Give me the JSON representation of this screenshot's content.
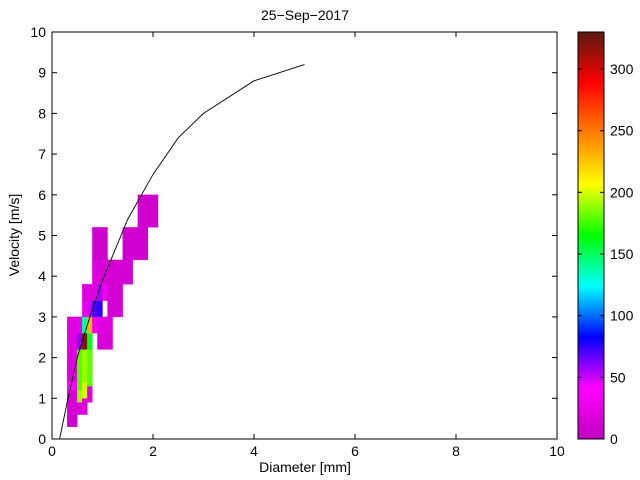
{
  "chart_data": {
    "type": "heatmap",
    "title": "25−Sep−2017",
    "xlabel": "Diameter [mm]",
    "ylabel": "Velocity [m/s]",
    "xlim": [
      0,
      10
    ],
    "ylim": [
      0,
      10
    ],
    "xticks": [
      "0",
      "2",
      "4",
      "6",
      "8",
      "10"
    ],
    "yticks": [
      "0",
      "1",
      "2",
      "3",
      "4",
      "5",
      "6",
      "7",
      "8",
      "9",
      "10"
    ],
    "colorbar": {
      "range": [
        0,
        330
      ],
      "ticks": [
        "0",
        "50",
        "100",
        "150",
        "200",
        "250",
        "300"
      ],
      "colormap": [
        "#c000c0",
        "#ff00ff",
        "#0000ff",
        "#00ffff",
        "#00ff00",
        "#ffff00",
        "#ff8000",
        "#ff0000",
        "#5a1a10"
      ]
    },
    "cells": [
      {
        "x0": 0.3,
        "x1": 0.5,
        "y0": 0.3,
        "y1": 0.6,
        "value": 10
      },
      {
        "x0": 0.3,
        "x1": 0.6,
        "y0": 0.6,
        "y1": 1.2,
        "value": 15
      },
      {
        "x0": 0.3,
        "x1": 0.5,
        "y0": 1.2,
        "y1": 1.4,
        "value": 40
      },
      {
        "x0": 0.3,
        "x1": 0.5,
        "y0": 1.4,
        "y1": 3.0,
        "value": 20
      },
      {
        "x0": 0.5,
        "x1": 0.6,
        "y0": 0.9,
        "y1": 1.2,
        "value": 190
      },
      {
        "x0": 0.5,
        "x1": 0.6,
        "y0": 1.2,
        "y1": 2.2,
        "value": 180
      },
      {
        "x0": 0.5,
        "x1": 0.6,
        "y0": 2.2,
        "y1": 2.6,
        "value": 60
      },
      {
        "x0": 0.5,
        "x1": 0.6,
        "y0": 2.6,
        "y1": 3.0,
        "value": 25
      },
      {
        "x0": 0.6,
        "x1": 0.7,
        "y0": 0.6,
        "y1": 1.0,
        "value": 20
      },
      {
        "x0": 0.6,
        "x1": 0.7,
        "y0": 1.0,
        "y1": 1.4,
        "value": 200
      },
      {
        "x0": 0.6,
        "x1": 0.7,
        "y0": 1.4,
        "y1": 2.2,
        "value": 190
      },
      {
        "x0": 0.6,
        "x1": 0.7,
        "y0": 2.2,
        "y1": 2.6,
        "value": 320
      },
      {
        "x0": 0.6,
        "x1": 0.7,
        "y0": 2.6,
        "y1": 3.0,
        "value": 140
      },
      {
        "x0": 0.6,
        "x1": 0.7,
        "y0": 3.0,
        "y1": 3.4,
        "value": 30
      },
      {
        "x0": 0.6,
        "x1": 0.8,
        "y0": 3.4,
        "y1": 3.8,
        "value": 20
      },
      {
        "x0": 0.7,
        "x1": 0.8,
        "y0": 0.9,
        "y1": 1.3,
        "value": 20
      },
      {
        "x0": 0.7,
        "x1": 0.8,
        "y0": 1.3,
        "y1": 2.2,
        "value": 180
      },
      {
        "x0": 0.7,
        "x1": 0.8,
        "y0": 2.2,
        "y1": 2.6,
        "value": 160
      },
      {
        "x0": 0.7,
        "x1": 0.8,
        "y0": 2.6,
        "y1": 3.0,
        "value": 230
      },
      {
        "x0": 0.7,
        "x1": 0.8,
        "y0": 3.0,
        "y1": 3.4,
        "value": 50
      },
      {
        "x0": 0.8,
        "x1": 0.9,
        "y0": 2.6,
        "y1": 3.0,
        "value": 30
      },
      {
        "x0": 0.8,
        "x1": 0.9,
        "y0": 3.0,
        "y1": 3.4,
        "value": 70
      },
      {
        "x0": 0.8,
        "x1": 0.9,
        "y0": 3.4,
        "y1": 4.4,
        "value": 20
      },
      {
        "x0": 0.9,
        "x1": 1.0,
        "y0": 3.0,
        "y1": 3.4,
        "value": 75
      },
      {
        "x0": 0.9,
        "x1": 1.0,
        "y0": 3.4,
        "y1": 3.8,
        "value": 55
      },
      {
        "x0": 0.9,
        "x1": 1.1,
        "y0": 3.8,
        "y1": 4.4,
        "value": 15
      },
      {
        "x0": 0.8,
        "x1": 1.1,
        "y0": 4.4,
        "y1": 5.2,
        "value": 10
      },
      {
        "x0": 0.9,
        "x1": 1.2,
        "y0": 2.2,
        "y1": 2.6,
        "value": 15
      },
      {
        "x0": 0.9,
        "x1": 1.2,
        "y0": 2.6,
        "y1": 3.0,
        "value": 20
      },
      {
        "x0": 1.0,
        "x1": 1.2,
        "y0": 3.4,
        "y1": 3.8,
        "value": 30
      },
      {
        "x0": 1.1,
        "x1": 1.4,
        "y0": 3.0,
        "y1": 3.8,
        "value": 12
      },
      {
        "x0": 1.1,
        "x1": 1.6,
        "y0": 3.8,
        "y1": 4.4,
        "value": 12
      },
      {
        "x0": 1.4,
        "x1": 1.9,
        "y0": 4.4,
        "y1": 5.2,
        "value": 10
      },
      {
        "x0": 1.7,
        "x1": 2.1,
        "y0": 5.2,
        "y1": 6.0,
        "value": 10
      }
    ],
    "fit_line": [
      {
        "x": 0.15,
        "y": 0.0
      },
      {
        "x": 0.3,
        "y": 0.9
      },
      {
        "x": 0.5,
        "y": 2.0
      },
      {
        "x": 0.75,
        "y": 3.0
      },
      {
        "x": 1.0,
        "y": 3.9
      },
      {
        "x": 1.5,
        "y": 5.4
      },
      {
        "x": 2.0,
        "y": 6.5
      },
      {
        "x": 2.5,
        "y": 7.4
      },
      {
        "x": 3.0,
        "y": 8.0
      },
      {
        "x": 4.0,
        "y": 8.8
      },
      {
        "x": 5.0,
        "y": 9.2
      }
    ]
  }
}
